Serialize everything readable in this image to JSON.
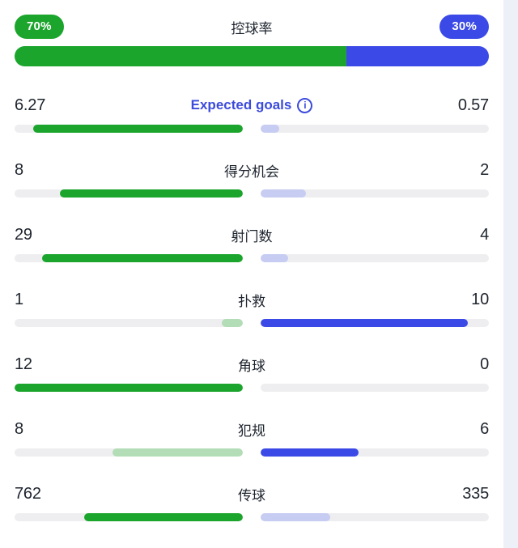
{
  "colors": {
    "home_solid": "#1ca52d",
    "home_faded": "#b3ddb6",
    "away_solid": "#3b4ae6",
    "away_faded": "#c6ccf2",
    "track": "#eeeef0",
    "text": "#1e242e",
    "accent": "#3c4bdc",
    "page_edge": "#edf0f6"
  },
  "possession": {
    "label": "控球率",
    "home_pct": "70%",
    "away_pct": "30%",
    "home_ratio": 70,
    "away_ratio": 30
  },
  "rows": [
    {
      "home_value": "6.27",
      "label": "Expected goals",
      "away_value": "0.57",
      "home_fill": 91.7,
      "away_fill": 8.3,
      "highlight": "home",
      "info_icon": true,
      "label_accent": true
    },
    {
      "home_value": "8",
      "label": "得分机会",
      "away_value": "2",
      "home_fill": 80,
      "away_fill": 20,
      "highlight": "home"
    },
    {
      "home_value": "29",
      "label": "射门数",
      "away_value": "4",
      "home_fill": 87.9,
      "away_fill": 12.1,
      "highlight": "home"
    },
    {
      "home_value": "1",
      "label": "扑救",
      "away_value": "10",
      "home_fill": 9.1,
      "away_fill": 90.9,
      "highlight": "away"
    },
    {
      "home_value": "12",
      "label": "角球",
      "away_value": "0",
      "home_fill": 100,
      "away_fill": 0,
      "highlight": "home"
    },
    {
      "home_value": "8",
      "label": "犯规",
      "away_value": "6",
      "home_fill": 57.1,
      "away_fill": 42.9,
      "highlight": "away"
    },
    {
      "home_value": "762",
      "label": "传球",
      "away_value": "335",
      "home_fill": 69.5,
      "away_fill": 30.5,
      "highlight": "home"
    }
  ],
  "info_icon_glyph": "i"
}
